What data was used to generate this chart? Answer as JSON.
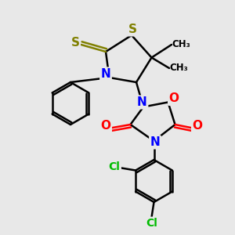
{
  "bg_color": "#e8e8e8",
  "bond_color": "#000000",
  "N_color": "#0000ff",
  "O_color": "#ff0000",
  "S_color": "#808000",
  "Cl_color": "#00bb00",
  "line_width": 1.8,
  "figsize": [
    3.0,
    3.0
  ],
  "dpi": 100,
  "xlim": [
    0,
    10
  ],
  "ylim": [
    0,
    10
  ]
}
